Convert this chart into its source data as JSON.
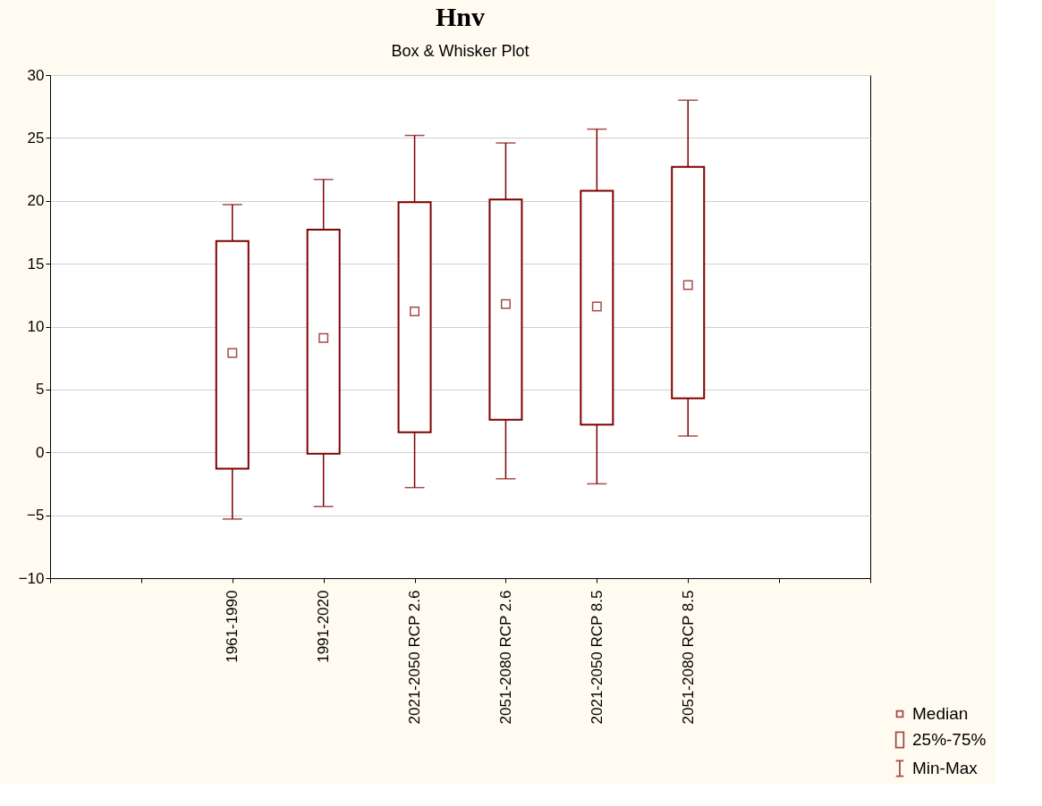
{
  "chart_data": {
    "type": "box",
    "title": "Hnv",
    "subtitle": "Box & Whisker Plot",
    "categories": [
      null,
      null,
      "1961-1990",
      "1991-2020",
      "2021-2050 RCP 2.6",
      "2051-2080 RCP 2.6",
      "2021-2050 RCP 8.5",
      "2051-2080 RCP 8.5",
      null,
      null
    ],
    "color": "#800000",
    "boxes": [
      null,
      null,
      {
        "low": -5.3,
        "q1": -1.3,
        "median": 7.9,
        "q3": 16.8,
        "high": 19.7
      },
      {
        "low": -4.3,
        "q1": -0.1,
        "median": 9.1,
        "q3": 17.7,
        "high": 21.7
      },
      {
        "low": -2.8,
        "q1": 1.6,
        "median": 11.2,
        "q3": 19.9,
        "high": 25.2
      },
      {
        "low": -2.1,
        "q1": 2.6,
        "median": 11.8,
        "q3": 20.1,
        "high": 24.6
      },
      {
        "low": -2.5,
        "q1": 2.2,
        "median": 11.6,
        "q3": 20.8,
        "high": 25.7
      },
      {
        "low": 1.3,
        "q1": 4.3,
        "median": 13.3,
        "q3": 22.7,
        "high": 28.0
      },
      null,
      null
    ],
    "ylim": [
      -10,
      30
    ],
    "yticks": [
      -10,
      -5,
      0,
      5,
      10,
      15,
      20,
      25,
      30
    ],
    "grid": "y",
    "annotations": [
      "Median",
      "25%-75%",
      "Min-Max"
    ]
  }
}
